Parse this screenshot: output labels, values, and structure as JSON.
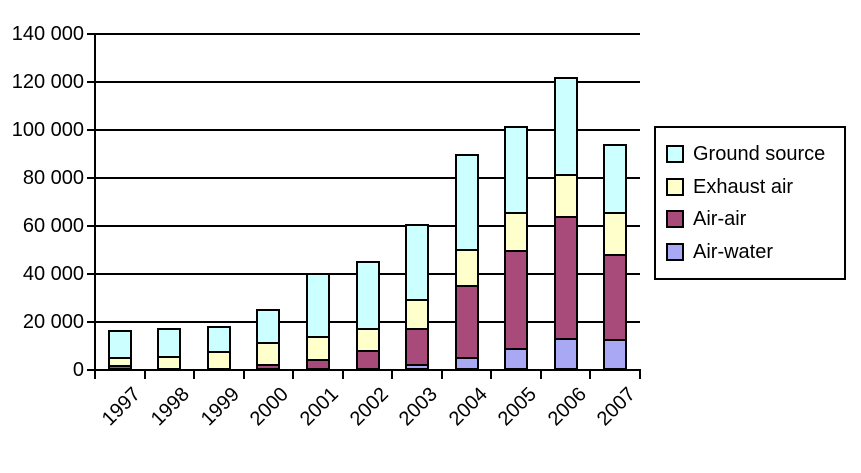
{
  "chart_data": {
    "type": "bar",
    "stacked": true,
    "title": "",
    "xlabel": "",
    "ylabel": "",
    "categories": [
      "1997",
      "1998",
      "1999",
      "2000",
      "2001",
      "2002",
      "2003",
      "2004",
      "2005",
      "2006",
      "2007"
    ],
    "series": [
      {
        "name": "Air-water",
        "color": "#A8A8F5",
        "values": [
          0,
          0,
          0,
          0,
          0,
          0,
          2500,
          5500,
          9000,
          13500,
          13000
        ]
      },
      {
        "name": "Air-air",
        "color": "#A84B7A",
        "values": [
          2000,
          0,
          0,
          2500,
          4500,
          8500,
          15000,
          30000,
          41000,
          50500,
          35500
        ]
      },
      {
        "name": "Exhaust air",
        "color": "#FFFFCC",
        "values": [
          3500,
          6000,
          8000,
          9000,
          9500,
          9000,
          12000,
          15000,
          16000,
          17500,
          17500
        ]
      },
      {
        "name": "Ground source",
        "color": "#CCFFFF",
        "values": [
          11000,
          11500,
          10500,
          14000,
          26500,
          28000,
          31500,
          39500,
          35500,
          40500,
          28000
        ]
      }
    ],
    "totals": [
      16500,
      17500,
      18500,
      25500,
      40500,
      45500,
      61000,
      90000,
      101500,
      122000,
      94000
    ],
    "y_axis": {
      "min": 0,
      "max": 140000,
      "tick_interval": 20000,
      "tick_labels": [
        "0",
        "20 000",
        "40 000",
        "60 000",
        "80 000",
        "100 000",
        "120 000",
        "140 000"
      ]
    },
    "legend": {
      "position": "right",
      "order": [
        "Ground source",
        "Exhaust air",
        "Air-air",
        "Air-water"
      ]
    },
    "grid": true,
    "axis_color": "#000000",
    "background": "#FFFFFF"
  }
}
